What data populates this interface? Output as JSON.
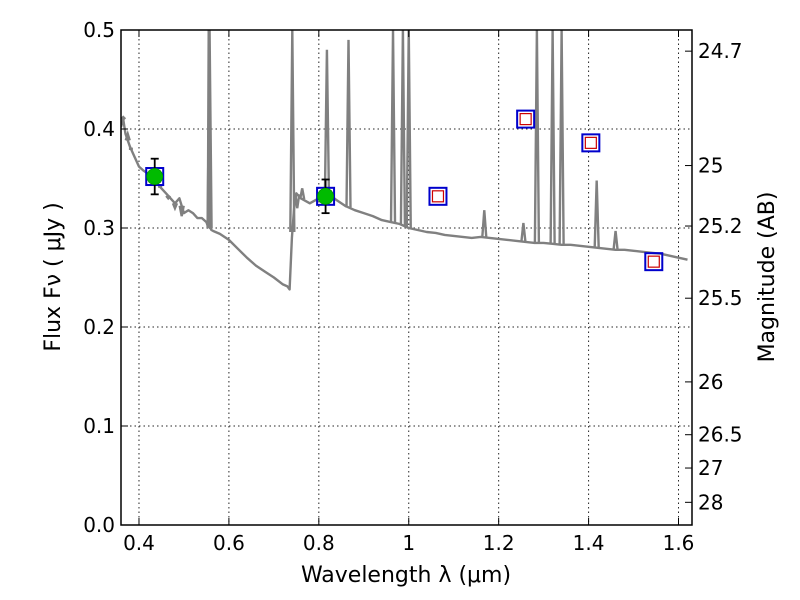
{
  "chart_data": {
    "type": "scatter",
    "title": "",
    "xlabel": "Wavelength  λ (μm)",
    "ylabel": "Flux  Fν  ( μJy )",
    "y2label": "Magnitude (AB)",
    "xlim": [
      0.36,
      1.63
    ],
    "ylim": [
      0.0,
      0.5
    ],
    "grid": true,
    "x_ticks": [
      0.4,
      0.6,
      0.8,
      1.0,
      1.2,
      1.4,
      1.6
    ],
    "x_tick_labels": [
      "0.4",
      "0.6",
      "0.8",
      "1",
      "1.2",
      "1.4",
      "1.6"
    ],
    "y_ticks": [
      0.0,
      0.1,
      0.2,
      0.3,
      0.4,
      0.5
    ],
    "y_tick_labels": [
      "0.0",
      "0.1",
      "0.2",
      "0.3",
      "0.4",
      "0.5"
    ],
    "mag_ticks": [
      24.7,
      25,
      25.2,
      25.5,
      26,
      26.5,
      27,
      28
    ],
    "mag_tick_labels": [
      "24.7",
      "25",
      "25.2",
      "25.5",
      "26",
      "26.5",
      "27",
      "28"
    ],
    "colors": {
      "model": "#808080",
      "detection": "#00bb00",
      "box": "#0000cc",
      "model_flux": "#cc0000",
      "errorbar": "#000000"
    },
    "series": [
      {
        "kind": "line",
        "x": [
          0.36,
          0.365,
          0.37,
          0.38,
          0.39,
          0.4,
          0.41,
          0.42,
          0.43,
          0.44,
          0.45,
          0.46,
          0.47,
          0.48,
          0.49,
          0.5,
          0.51,
          0.52,
          0.53,
          0.54,
          0.55,
          0.553,
          0.555,
          0.557,
          0.559,
          0.561,
          0.565,
          0.58,
          0.6,
          0.62,
          0.64,
          0.66,
          0.68,
          0.7,
          0.72,
          0.73,
          0.735,
          0.74,
          0.745,
          0.75,
          0.76,
          0.78,
          0.8,
          0.82,
          0.84,
          0.86,
          0.88,
          0.9,
          0.92,
          0.94,
          0.96,
          0.98,
          1.0,
          1.02,
          1.04,
          1.06,
          1.08,
          1.1,
          1.12,
          1.14,
          1.16,
          1.18,
          1.2,
          1.22,
          1.24,
          1.26,
          1.28,
          1.3,
          1.32,
          1.34,
          1.36,
          1.38,
          1.4,
          1.42,
          1.44,
          1.46,
          1.48,
          1.5,
          1.52,
          1.54,
          1.56,
          1.58,
          1.6,
          1.62
        ],
        "y": [
          0.402,
          0.41,
          0.395,
          0.382,
          0.372,
          0.362,
          0.358,
          0.355,
          0.35,
          0.345,
          0.34,
          0.335,
          0.33,
          0.325,
          0.33,
          0.315,
          0.318,
          0.315,
          0.31,
          0.31,
          0.306,
          0.302,
          0.5,
          0.3,
          0.3,
          0.298,
          0.297,
          0.294,
          0.288,
          0.279,
          0.27,
          0.262,
          0.256,
          0.25,
          0.243,
          0.241,
          0.238,
          0.29,
          0.32,
          0.335,
          0.33,
          0.325,
          0.33,
          0.335,
          0.328,
          0.322,
          0.318,
          0.315,
          0.312,
          0.308,
          0.306,
          0.304,
          0.3,
          0.298,
          0.296,
          0.295,
          0.293,
          0.292,
          0.291,
          0.29,
          0.291,
          0.29,
          0.289,
          0.288,
          0.287,
          0.286,
          0.285,
          0.285,
          0.284,
          0.283,
          0.283,
          0.282,
          0.281,
          0.28,
          0.279,
          0.278,
          0.278,
          0.277,
          0.276,
          0.275,
          0.274,
          0.272,
          0.27,
          0.268
        ]
      },
      {
        "kind": "spikes",
        "x": [
          0.365,
          0.375,
          0.382,
          0.447,
          0.465,
          0.48,
          0.495,
          0.557,
          0.741,
          0.752,
          0.763,
          0.818,
          0.866,
          0.965,
          0.987,
          1.0,
          1.168,
          1.255,
          1.285,
          1.32,
          1.34,
          1.418,
          1.46
        ],
        "y": [
          0.412,
          0.395,
          0.38,
          0.342,
          0.33,
          0.32,
          0.312,
          0.5,
          0.5,
          0.32,
          0.34,
          0.48,
          0.49,
          0.5,
          0.5,
          0.5,
          0.318,
          0.305,
          0.5,
          0.5,
          0.5,
          0.348,
          0.297
        ]
      },
      {
        "kind": "detections",
        "x": [
          0.435,
          0.815
        ],
        "y": [
          0.352,
          0.332
        ],
        "yerr": [
          0.018,
          0.017
        ]
      },
      {
        "kind": "model-fluxes",
        "x": [
          0.435,
          0.815,
          1.065,
          1.26,
          1.405,
          1.545
        ],
        "y": [
          0.352,
          0.332,
          0.332,
          0.41,
          0.386,
          0.266
        ]
      }
    ]
  }
}
